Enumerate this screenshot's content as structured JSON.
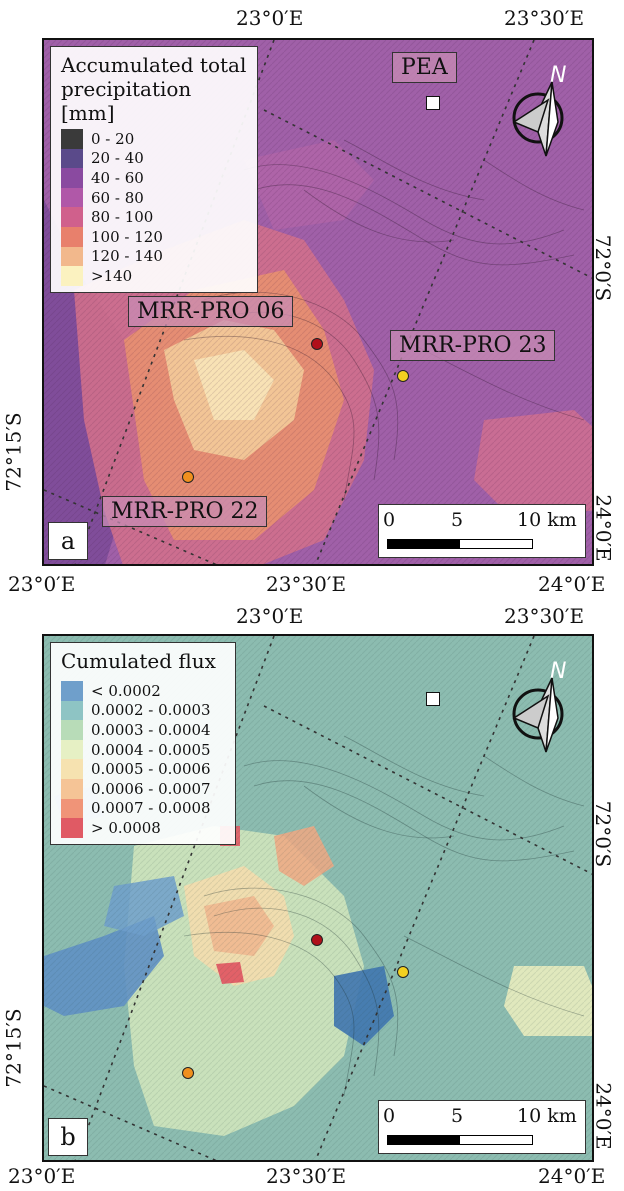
{
  "panel_a": {
    "tag": "a",
    "legend_title": "Accumulated total precipitation [mm]",
    "legend_title_line1": "Accumulated total",
    "legend_title_line2": "precipitation [mm]",
    "legend": [
      {
        "label": "0 - 20",
        "color": "#3a3a3a"
      },
      {
        "label": "20 - 40",
        "color": "#5a4a8a"
      },
      {
        "label": "40 - 60",
        "color": "#8a4aa0"
      },
      {
        "label": "60 - 80",
        "color": "#b058a8"
      },
      {
        "label": "80 - 100",
        "color": "#d0608c"
      },
      {
        "label": "100 - 120",
        "color": "#e8806c"
      },
      {
        "label": "120 - 140",
        "color": "#f2b88c"
      },
      {
        "label": ">140",
        "color": "#fbf2c0"
      }
    ],
    "sites": {
      "pea": "PEA",
      "mrr06": "MRR-PRO 06",
      "mrr23": "MRR-PRO 23",
      "mrr22": "MRR-PRO 22"
    },
    "top_ticks": [
      "23°0′E",
      "23°30′E"
    ],
    "bottom_ticks": [
      "23°0′E",
      "23°30′E",
      "24°0′E"
    ],
    "right_ticks": [
      "72°0′S",
      "24°0′E"
    ],
    "left_ticks": [
      "72°15′S"
    ]
  },
  "panel_b": {
    "tag": "b",
    "legend_title": "Cumulated flux",
    "legend": [
      {
        "label": "< 0.0002",
        "color": "#6f9fcb"
      },
      {
        "label": "0.0002 - 0.0003",
        "color": "#8ec4c4"
      },
      {
        "label": "0.0003 - 0.0004",
        "color": "#b8dcb8"
      },
      {
        "label": "0.0004 - 0.0005",
        "color": "#e6f0c4"
      },
      {
        "label": "0.0005 - 0.0006",
        "color": "#f6e2b0"
      },
      {
        "label": "0.0006 - 0.0007",
        "color": "#f5c496"
      },
      {
        "label": "0.0007 - 0.0008",
        "color": "#f09478"
      },
      {
        "label": "> 0.0008",
        "color": "#e05a64"
      }
    ],
    "top_ticks": [
      "23°0′E",
      "23°30′E"
    ],
    "bottom_ticks": [
      "23°0′E",
      "23°30′E",
      "24°0′E"
    ],
    "right_ticks": [
      "72°0′S",
      "24°0′E"
    ],
    "left_ticks": [
      "72°15′S"
    ]
  },
  "scale_bar": {
    "zero": "0",
    "mid": "5",
    "end": "10 km"
  },
  "north_label": "N",
  "colors": {
    "mrr06": "#b0101a",
    "mrr23": "#f2d020",
    "mrr22": "#f0901e",
    "panel_a_bg": "#a060a8",
    "panel_b_bg": "#8cbcb0"
  }
}
